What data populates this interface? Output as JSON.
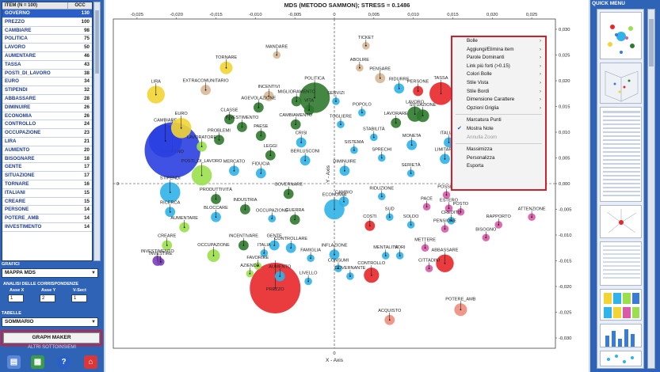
{
  "table": {
    "headers": {
      "item": "ITEM (N = 100)",
      "occ": "OCC"
    },
    "rows": [
      {
        "item": "GOVERNO",
        "occ": "130",
        "selected": true
      },
      {
        "item": "PREZZO",
        "occ": "100"
      },
      {
        "item": "CAMBIARE",
        "occ": "98"
      },
      {
        "item": "POLITICA",
        "occ": "75"
      },
      {
        "item": "LAVORO",
        "occ": "50"
      },
      {
        "item": "AUMENTARE",
        "occ": "46"
      },
      {
        "item": "TASSA",
        "occ": "43"
      },
      {
        "item": "POSTI_DI_LAVORO",
        "occ": "38"
      },
      {
        "item": "EURO",
        "occ": "34"
      },
      {
        "item": "STIPENDI",
        "occ": "32"
      },
      {
        "item": "ABBASSARE",
        "occ": "28"
      },
      {
        "item": "DIMINUIRE",
        "occ": "26"
      },
      {
        "item": "ECONOMIA",
        "occ": "26"
      },
      {
        "item": "CONTROLLO",
        "occ": "24"
      },
      {
        "item": "OCCUPAZIONE",
        "occ": "23"
      },
      {
        "item": "LIRA",
        "occ": "21"
      },
      {
        "item": "AUMENTO",
        "occ": "20"
      },
      {
        "item": "BISOGNARE",
        "occ": "18"
      },
      {
        "item": "GENTE",
        "occ": "17"
      },
      {
        "item": "SITUAZIONE",
        "occ": "17"
      },
      {
        "item": "TORNARE",
        "occ": "16"
      },
      {
        "item": "ITALIANI",
        "occ": "15"
      },
      {
        "item": "CREARE",
        "occ": "15"
      },
      {
        "item": "PERSONE",
        "occ": "14"
      },
      {
        "item": "POTERE_AMB",
        "occ": "14"
      },
      {
        "item": "INVESTIMENTO",
        "occ": "14"
      }
    ]
  },
  "left_panel": {
    "grafici_label": "GRAFICI",
    "grafici_value": "MAPPA MDS",
    "analisi_label": "ANALISI DELLE CORRISPONDENZE",
    "asse_x_label": "Asse X",
    "asse_y_label": "Asse Y",
    "vsect_label": "V-Sect",
    "asse_x_value": "1",
    "asse_y_value": "2",
    "vsect_value": "1",
    "tabelle_label": "TABELLE",
    "tabelle_value": "SOMMARIO",
    "graph_maker_label": "GRAPH MAKER",
    "altri_label": "ALTRI SOTTOINSIEMI"
  },
  "menu": {
    "items": [
      {
        "label": "Bolle",
        "sub": true
      },
      {
        "label": "Aggiungi/Elimina item",
        "sub": true
      },
      {
        "label": "Parole Dominanti",
        "sub": true
      },
      {
        "label": "Link più forti (>0.15)",
        "sub": true
      },
      {
        "label": "Colori Bolle",
        "sub": true
      },
      {
        "label": "Stile Vista",
        "sub": true
      },
      {
        "label": "Stile Bordi",
        "sub": true
      },
      {
        "label": "Dimensione Carattere",
        "sub": true
      },
      {
        "label": "Opzioni Griglia",
        "sub": true
      },
      {
        "label": "Marcatura Punti"
      },
      {
        "label": "Mostra Note",
        "checked": true
      },
      {
        "label": "Annulla Zoom",
        "disabled": true
      },
      {
        "label": "Massimizza"
      },
      {
        "label": "Personalizza"
      },
      {
        "label": "Esporta"
      }
    ]
  },
  "quick_menu": {
    "title": "QUICK MENU"
  },
  "colors": {
    "panel": "#2f63b6",
    "menu_border": "#d01f2e",
    "blue": "#2a3fe0",
    "cyan": "#2fb3e8",
    "green": "#2f7a2f",
    "lime": "#9be04c",
    "yellow": "#f2d534",
    "red": "#e8262a",
    "pink": "#d95aa8",
    "tan": "#d8b896",
    "salmon": "#ee8c7c",
    "purple": "#7a3fb8"
  },
  "chart_data": {
    "type": "scatter",
    "title": "MDS (METODO SAMMON); STRESS = 0.1486",
    "xlabel": "X - Axis",
    "ylabel": "Y - Axis",
    "xlim": [
      -0.028,
      0.028
    ],
    "ylim": [
      -0.032,
      0.032
    ],
    "xticks": [
      -0.025,
      -0.02,
      -0.015,
      -0.01,
      -0.005,
      0,
      0.005,
      0.01,
      0.015,
      0.02,
      0.025
    ],
    "yticks": [
      0.03,
      0.025,
      0.02,
      0.015,
      0.01,
      0.005,
      0,
      -0.005,
      -0.01,
      -0.015,
      -0.02,
      -0.025,
      -0.03
    ],
    "tick_labels_x": [
      "-0,025",
      "-0,020",
      "-0,015",
      "-0,010",
      "-0,005",
      "0",
      "0,005",
      "0,010",
      "0,015",
      "0,020",
      "0,025"
    ],
    "tick_labels_y": [
      "0,030",
      "0,025",
      "0,020",
      "0,015",
      "0,010",
      "0,005",
      "0,000",
      "-0,005",
      "-0,010",
      "-0,015",
      "-0,020",
      "-0,025",
      "-0,030"
    ],
    "zero_tick_x": "0",
    "zero_tick_y": "0",
    "grid": false,
    "points": [
      {
        "label": "GOVERNO",
        "x": -0.0205,
        "y": 0.0065,
        "size": 22,
        "color": "blue"
      },
      {
        "label": "CAMBIARE",
        "x": -0.0214,
        "y": 0.0083,
        "size": 13,
        "color": "blue"
      },
      {
        "label": "PREZZO",
        "x": -0.0075,
        "y": -0.0203,
        "size": 20,
        "color": "red"
      },
      {
        "label": "POLITICA",
        "x": -0.0025,
        "y": 0.0167,
        "size": 12,
        "color": "green"
      },
      {
        "label": "LAVORO",
        "x": 0.0102,
        "y": 0.0135,
        "size": 6,
        "color": "green"
      },
      {
        "label": "TASSA",
        "x": 0.0135,
        "y": 0.0175,
        "size": 9,
        "color": "red"
      },
      {
        "label": "POSTI_DI_LAVORO",
        "x": -0.0168,
        "y": 0.0016,
        "size": 8,
        "color": "lime"
      },
      {
        "label": "EURO",
        "x": -0.0194,
        "y": 0.0108,
        "size": 8,
        "color": "yellow"
      },
      {
        "label": "STIPENDI",
        "x": -0.0208,
        "y": -0.0017,
        "size": 8,
        "color": "cyan"
      },
      {
        "label": "ABBASSARE",
        "x": 0.014,
        "y": -0.0155,
        "size": 7,
        "color": "red"
      },
      {
        "label": "DIMINUIRE",
        "x": 0.0013,
        "y": 0.0025,
        "size": 4,
        "color": "cyan"
      },
      {
        "label": "ECONOMIA",
        "x": 0.0,
        "y": -0.005,
        "size": 8,
        "color": "cyan"
      },
      {
        "label": "CONTROLLO",
        "x": 0.0047,
        "y": -0.0178,
        "size": 6,
        "color": "red"
      },
      {
        "label": "OCCUPAZIONE",
        "x": -0.0153,
        "y": -0.014,
        "size": 5,
        "color": "lime"
      },
      {
        "label": "LIRA",
        "x": -0.0226,
        "y": 0.0173,
        "size": 7,
        "color": "yellow"
      },
      {
        "label": "AUMENTO",
        "x": -0.0069,
        "y": -0.018,
        "size": 4,
        "color": "cyan"
      },
      {
        "label": "GENTE",
        "x": -0.0076,
        "y": -0.012,
        "size": 4,
        "color": "cyan"
      },
      {
        "label": "SITUAZIONE",
        "x": 0.0112,
        "y": 0.0132,
        "size": 5,
        "color": "green"
      },
      {
        "label": "TORNARE",
        "x": -0.0137,
        "y": 0.0225,
        "size": 5,
        "color": "yellow"
      },
      {
        "label": "ITALIANI",
        "x": 0.0145,
        "y": 0.008,
        "size": 4,
        "color": "cyan"
      },
      {
        "label": "CREARE",
        "x": -0.0212,
        "y": -0.012,
        "size": 4,
        "color": "lime"
      },
      {
        "label": "PERSONE",
        "x": 0.0106,
        "y": 0.018,
        "size": 4,
        "color": "red"
      },
      {
        "label": "POTERE_AMB",
        "x": 0.016,
        "y": -0.0245,
        "size": 5,
        "color": "salmon"
      },
      {
        "label": "INVESTIMENTO",
        "x": -0.0224,
        "y": -0.015,
        "size": 4,
        "color": "purple"
      },
      {
        "label": "MANDARE",
        "x": -0.0073,
        "y": 0.025,
        "size": 3,
        "color": "tan"
      },
      {
        "label": "TICKET",
        "x": 0.004,
        "y": 0.0268,
        "size": 3,
        "color": "tan"
      },
      {
        "label": "ABOLIRE",
        "x": 0.0032,
        "y": 0.0225,
        "size": 3,
        "color": "tan"
      },
      {
        "label": "PENSARE",
        "x": 0.0058,
        "y": 0.0205,
        "size": 4,
        "color": "tan"
      },
      {
        "label": "RIDURRE",
        "x": 0.0082,
        "y": 0.0185,
        "size": 4,
        "color": "cyan"
      },
      {
        "label": "EXTRACOMUNITARIO",
        "x": -0.0163,
        "y": 0.0182,
        "size": 4,
        "color": "tan"
      },
      {
        "label": "INCENTIVI",
        "x": -0.0083,
        "y": 0.017,
        "size": 4,
        "color": "tan"
      },
      {
        "label": "MIGLIORAMENTO",
        "x": -0.0048,
        "y": 0.016,
        "size": 4,
        "color": "green"
      },
      {
        "label": "AGEVOLAZIONE",
        "x": -0.0096,
        "y": 0.0148,
        "size": 4,
        "color": "green"
      },
      {
        "label": "VITA",
        "x": -0.0032,
        "y": 0.0143,
        "size": 4,
        "color": "green"
      },
      {
        "label": "SERVIZI",
        "x": 0.0002,
        "y": 0.016,
        "size": 3,
        "color": "cyan"
      },
      {
        "label": "POPOLO",
        "x": 0.0035,
        "y": 0.0138,
        "size": 3,
        "color": "cyan"
      },
      {
        "label": "CLASSE",
        "x": -0.0133,
        "y": 0.0125,
        "size": 4,
        "color": "green"
      },
      {
        "label": "INVESTIMENTO",
        "x": -0.0117,
        "y": 0.011,
        "size": 4,
        "color": "green"
      },
      {
        "label": "CAMBIAMENTO",
        "x": -0.0049,
        "y": 0.0115,
        "size": 4,
        "color": "green"
      },
      {
        "label": "TOGLIERE",
        "x": 0.0008,
        "y": 0.0115,
        "size": 3,
        "color": "cyan"
      },
      {
        "label": "LAVORARE",
        "x": 0.0078,
        "y": 0.0118,
        "size": 4,
        "color": "green"
      },
      {
        "label": "PROBLEMI",
        "x": -0.0146,
        "y": 0.0085,
        "size": 4,
        "color": "green"
      },
      {
        "label": "PAESE",
        "x": -0.0093,
        "y": 0.0093,
        "size": 4,
        "color": "green"
      },
      {
        "label": "STABILITÀ",
        "x": 0.005,
        "y": 0.009,
        "size": 3,
        "color": "cyan"
      },
      {
        "label": "LAVORATORE",
        "x": -0.0168,
        "y": 0.0072,
        "size": 4,
        "color": "lime"
      },
      {
        "label": "CRISI",
        "x": -0.0042,
        "y": 0.008,
        "size": 4,
        "color": "cyan"
      },
      {
        "label": "SISTEMA",
        "x": 0.0025,
        "y": 0.0065,
        "size": 3,
        "color": "cyan"
      },
      {
        "label": "MONETA",
        "x": 0.0098,
        "y": 0.0075,
        "size": 4,
        "color": "cyan"
      },
      {
        "label": "LEGGI",
        "x": -0.0081,
        "y": 0.0055,
        "size": 4,
        "color": "green"
      },
      {
        "label": "BERLUSCONI",
        "x": -0.0037,
        "y": 0.0045,
        "size": 4,
        "color": "cyan"
      },
      {
        "label": "SPRECHI",
        "x": 0.006,
        "y": 0.005,
        "size": 3,
        "color": "cyan"
      },
      {
        "label": "LIMITARE",
        "x": 0.014,
        "y": 0.0048,
        "size": 4,
        "color": "cyan"
      },
      {
        "label": "MERCATO",
        "x": -0.0127,
        "y": 0.0025,
        "size": 4,
        "color": "cyan"
      },
      {
        "label": "FIDUCIA",
        "x": -0.0093,
        "y": 0.002,
        "size": 4,
        "color": "cyan"
      },
      {
        "label": "SERIETÀ",
        "x": 0.0097,
        "y": 0.002,
        "size": 3,
        "color": "cyan"
      },
      {
        "label": "PRODUTTIVITÀ",
        "x": -0.015,
        "y": -0.003,
        "size": 4,
        "color": "green"
      },
      {
        "label": "GOVERNARE",
        "x": -0.0058,
        "y": -0.002,
        "size": 4,
        "color": "green"
      },
      {
        "label": "RIDUZIONE",
        "x": 0.006,
        "y": -0.0025,
        "size": 3,
        "color": "cyan"
      },
      {
        "label": "POSSIBI",
        "x": 0.0142,
        "y": -0.0022,
        "size": 3,
        "color": "pink"
      },
      {
        "label": "CAMBIO",
        "x": 0.0012,
        "y": -0.0035,
        "size": 4,
        "color": "cyan"
      },
      {
        "label": "PACE",
        "x": 0.0117,
        "y": -0.0045,
        "size": 3,
        "color": "pink"
      },
      {
        "label": "RICERCA",
        "x": -0.0208,
        "y": -0.0055,
        "size": 4,
        "color": "cyan"
      },
      {
        "label": "INDUSTRIA",
        "x": -0.0113,
        "y": -0.005,
        "size": 4,
        "color": "green"
      },
      {
        "label": "BLOCCARE",
        "x": -0.015,
        "y": -0.0065,
        "size": 4,
        "color": "cyan"
      },
      {
        "label": "OCCUPAZIONE",
        "x": -0.0079,
        "y": -0.0068,
        "size": 3,
        "color": "cyan"
      },
      {
        "label": "GUERRA",
        "x": -0.005,
        "y": -0.007,
        "size": 4,
        "color": "green"
      },
      {
        "label": "SUD",
        "x": 0.007,
        "y": -0.0065,
        "size": 3,
        "color": "cyan"
      },
      {
        "label": "ESTERO",
        "x": 0.0145,
        "y": -0.0048,
        "size": 3,
        "color": "pink"
      },
      {
        "label": "POSTO",
        "x": 0.016,
        "y": -0.0055,
        "size": 3,
        "color": "pink"
      },
      {
        "label": "ATTENZIONE",
        "x": 0.025,
        "y": -0.0065,
        "size": 3,
        "color": "pink"
      },
      {
        "label": "AUMENTARE",
        "x": -0.019,
        "y": -0.0085,
        "size": 4,
        "color": "lime"
      },
      {
        "label": "COSTI",
        "x": 0.0045,
        "y": -0.0082,
        "size": 4,
        "color": "red"
      },
      {
        "label": "SOLDO",
        "x": 0.0097,
        "y": -0.008,
        "size": 3,
        "color": "cyan"
      },
      {
        "label": "CREDITO",
        "x": 0.0148,
        "y": -0.0072,
        "size": 3,
        "color": "cyan"
      },
      {
        "label": "RAPPORTO",
        "x": 0.0208,
        "y": -0.008,
        "size": 3,
        "color": "pink"
      },
      {
        "label": "PENSIONE",
        "x": 0.014,
        "y": -0.0088,
        "size": 3,
        "color": "pink"
      },
      {
        "label": "BISOGNO",
        "x": 0.0192,
        "y": -0.0105,
        "size": 3,
        "color": "pink"
      },
      {
        "label": "INCENTIVARE",
        "x": -0.0115,
        "y": -0.012,
        "size": 4,
        "color": "green"
      },
      {
        "label": "ITALIA",
        "x": -0.0089,
        "y": -0.0135,
        "size": 3,
        "color": "cyan"
      },
      {
        "label": "CONTROLLARE",
        "x": -0.0055,
        "y": -0.0125,
        "size": 4,
        "color": "cyan"
      },
      {
        "label": "FAMIGLIA",
        "x": -0.003,
        "y": -0.0145,
        "size": 3,
        "color": "cyan"
      },
      {
        "label": "INFLAZIONE",
        "x": 0.0,
        "y": -0.0138,
        "size": 4,
        "color": "cyan"
      },
      {
        "label": "MENTALITÀ",
        "x": 0.0065,
        "y": -0.014,
        "size": 3,
        "color": "cyan"
      },
      {
        "label": "VORI",
        "x": 0.0083,
        "y": -0.014,
        "size": 3,
        "color": "cyan"
      },
      {
        "label": "METTERE",
        "x": 0.0115,
        "y": -0.0125,
        "size": 3,
        "color": "pink"
      },
      {
        "label": "FAVORIRE",
        "x": -0.0097,
        "y": -0.016,
        "size": 3,
        "color": "lime"
      },
      {
        "label": "CONSUMI",
        "x": 0.0005,
        "y": -0.0165,
        "size": 3,
        "color": "cyan"
      },
      {
        "label": "CITTADINI",
        "x": 0.012,
        "y": -0.0165,
        "size": 3,
        "color": "pink"
      },
      {
        "label": "AZIENDA",
        "x": -0.0107,
        "y": -0.0175,
        "size": 3,
        "color": "lime"
      },
      {
        "label": "GOVERNANTE",
        "x": 0.002,
        "y": -0.018,
        "size": 3,
        "color": "cyan"
      },
      {
        "label": "LIVELLO",
        "x": -0.0033,
        "y": -0.019,
        "size": 3,
        "color": "cyan"
      },
      {
        "label": "ACQUISTO",
        "x": 0.007,
        "y": -0.0265,
        "size": 4,
        "color": "salmon"
      },
      {
        "label": "INVESTIRE",
        "x": -0.022,
        "y": -0.0152,
        "size": 3,
        "color": "purple"
      }
    ]
  }
}
